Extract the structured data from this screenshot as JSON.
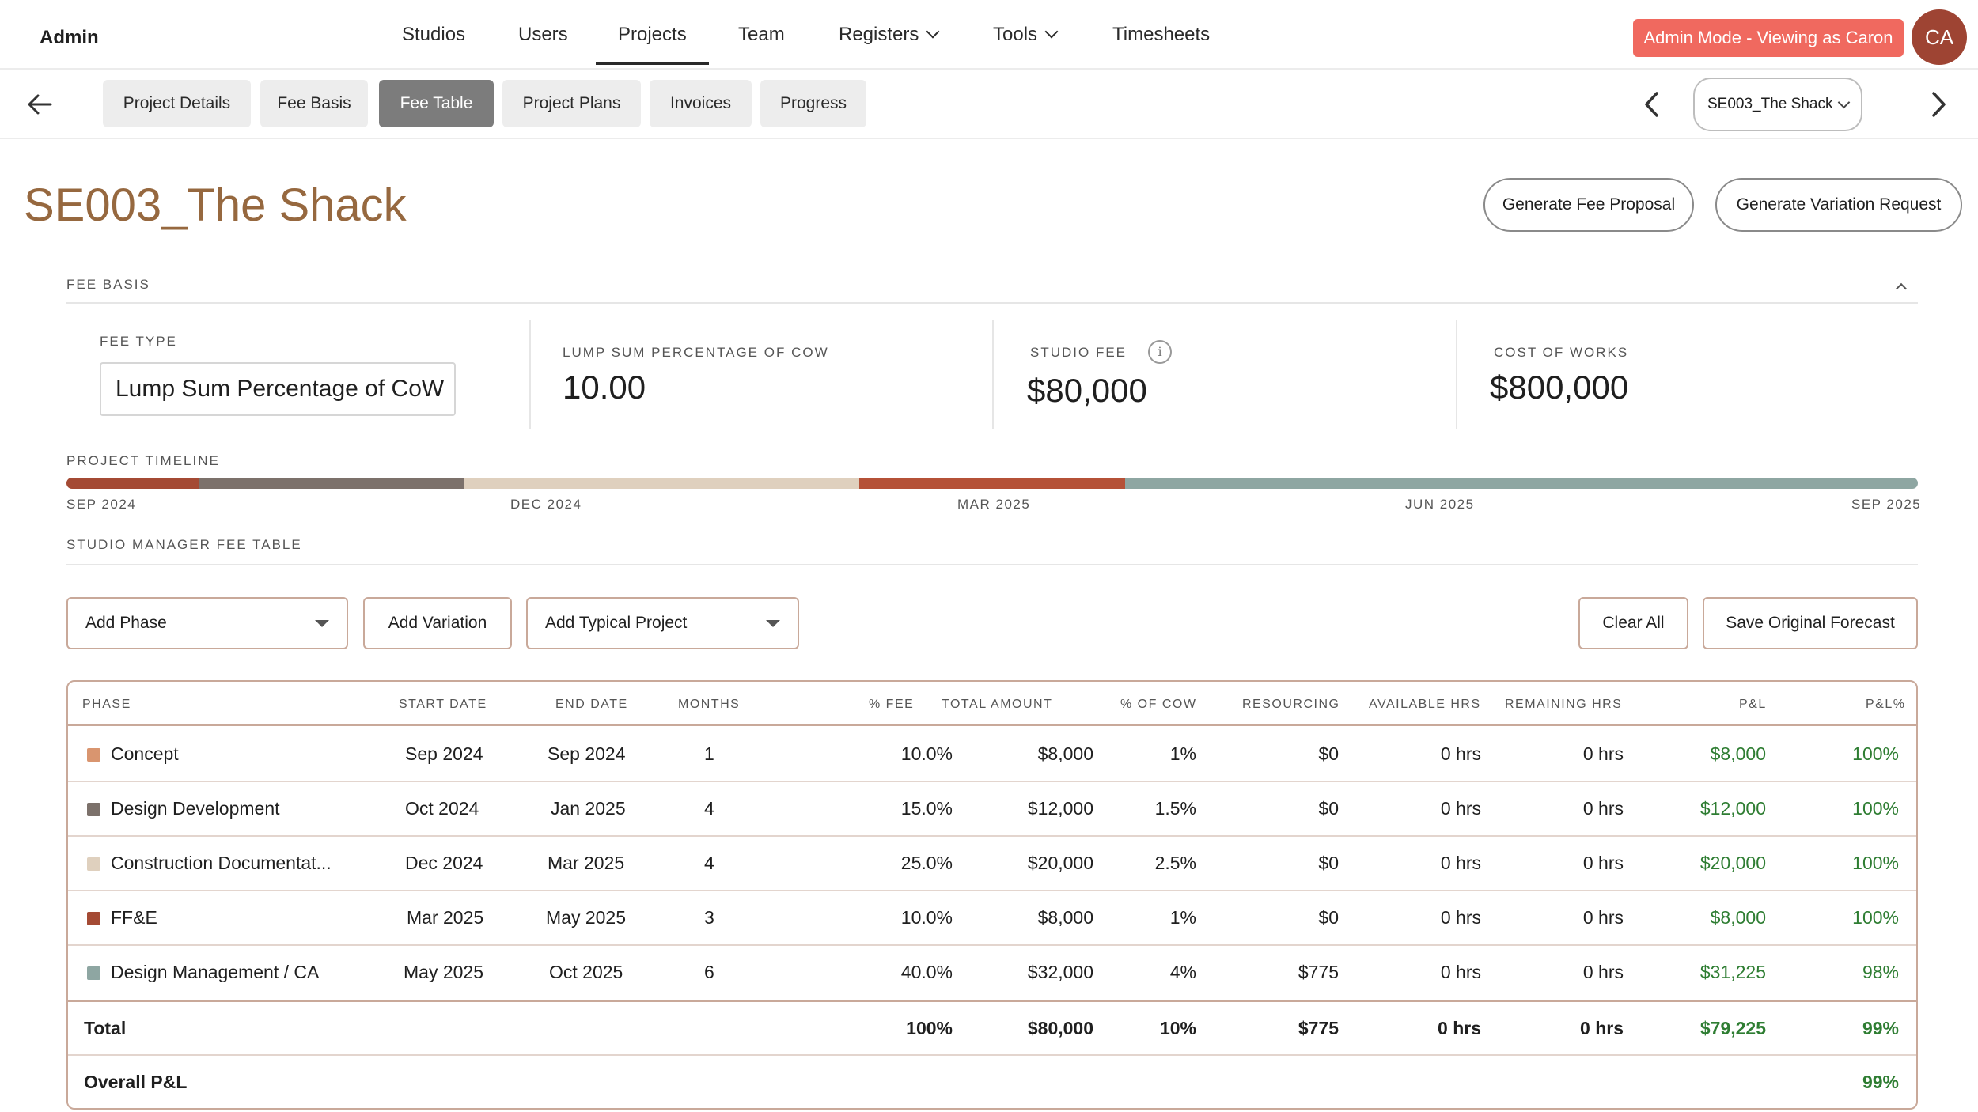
{
  "app": {
    "brand": "Admin",
    "admin_badge": "Admin Mode - Viewing as Caron",
    "avatar_initials": "CA"
  },
  "nav": {
    "items": [
      {
        "label": "Studios"
      },
      {
        "label": "Users"
      },
      {
        "label": "Projects",
        "active": true
      },
      {
        "label": "Team"
      },
      {
        "label": "Registers",
        "dropdown": true
      },
      {
        "label": "Tools",
        "dropdown": true
      },
      {
        "label": "Timesheets"
      }
    ]
  },
  "subnav": {
    "tabs": [
      {
        "label": "Project Details"
      },
      {
        "label": "Fee Basis"
      },
      {
        "label": "Fee Table",
        "active": true
      },
      {
        "label": "Project Plans"
      },
      {
        "label": "Invoices"
      },
      {
        "label": "Progress"
      }
    ],
    "project_select": "SE003_The Shack"
  },
  "page": {
    "title": "SE003_The Shack",
    "generate_fee_proposal": "Generate Fee Proposal",
    "generate_variation_request": "Generate Variation Request"
  },
  "fee_basis": {
    "section_label": "FEE BASIS",
    "fee_type_label": "FEE TYPE",
    "fee_type_value": "Lump Sum Percentage of CoW",
    "lump_sum_label": "LUMP SUM PERCENTAGE OF COW",
    "lump_sum_value": "10.00",
    "studio_fee_label": "STUDIO FEE",
    "studio_fee_value": "$80,000",
    "cost_of_works_label": "COST OF WORKS",
    "cost_of_works_value": "$800,000"
  },
  "timeline": {
    "section_label": "PROJECT TIMELINE",
    "labels": [
      "SEP 2024",
      "DEC 2024",
      "MAR 2025",
      "JUN 2025",
      "SEP 2025"
    ]
  },
  "fee_table": {
    "section_label": "STUDIO MANAGER FEE TABLE",
    "add_phase": "Add Phase",
    "add_variation": "Add Variation",
    "add_typical_project": "Add Typical Project",
    "clear_all": "Clear All",
    "save_original_forecast": "Save Original Forecast",
    "headers": {
      "phase": "PHASE",
      "start": "START DATE",
      "end": "END DATE",
      "months": "MONTHS",
      "fee_pct": "% FEE",
      "total": "TOTAL AMOUNT",
      "cow_pct": "% OF COW",
      "resourcing": "RESOURCING",
      "available": "AVAILABLE HRS",
      "remaining": "REMAINING HRS",
      "pl": "P&L",
      "pl_pct": "P&L%"
    },
    "rows": [
      {
        "phase": "Concept",
        "color": "#d9956f",
        "start": "Sep 2024",
        "end": "Sep 2024",
        "months": "1",
        "fee_pct": "10.0%",
        "total": "$8,000",
        "cow_pct": "1%",
        "resourcing": "$0",
        "available": "0 hrs",
        "remaining": "0 hrs",
        "pl": "$8,000",
        "pl_pct": "100%"
      },
      {
        "phase": "Design Development",
        "color": "#7c716b",
        "start": "Oct 2024",
        "end": "Jan 2025",
        "months": "4",
        "fee_pct": "15.0%",
        "total": "$12,000",
        "cow_pct": "1.5%",
        "resourcing": "$0",
        "available": "0 hrs",
        "remaining": "0 hrs",
        "pl": "$12,000",
        "pl_pct": "100%"
      },
      {
        "phase": "Construction Documentat...",
        "color": "#dfd0be",
        "start": "Dec 2024",
        "end": "Mar 2025",
        "months": "4",
        "fee_pct": "25.0%",
        "total": "$20,000",
        "cow_pct": "2.5%",
        "resourcing": "$0",
        "available": "0 hrs",
        "remaining": "0 hrs",
        "pl": "$20,000",
        "pl_pct": "100%"
      },
      {
        "phase": "FF&E",
        "color": "#a44a34",
        "start": "Mar 2025",
        "end": "May 2025",
        "months": "3",
        "fee_pct": "10.0%",
        "total": "$8,000",
        "cow_pct": "1%",
        "resourcing": "$0",
        "available": "0 hrs",
        "remaining": "0 hrs",
        "pl": "$8,000",
        "pl_pct": "100%"
      },
      {
        "phase": "Design Management / CA",
        "color": "#8ea6a2",
        "start": "May 2025",
        "end": "Oct 2025",
        "months": "6",
        "fee_pct": "40.0%",
        "total": "$32,000",
        "cow_pct": "4%",
        "resourcing": "$775",
        "available": "0 hrs",
        "remaining": "0 hrs",
        "pl": "$31,225",
        "pl_pct": "98%"
      }
    ],
    "total": {
      "label": "Total",
      "fee_pct": "100%",
      "total": "$80,000",
      "cow_pct": "10%",
      "resourcing": "$775",
      "available": "0 hrs",
      "remaining": "0 hrs",
      "pl": "$79,225",
      "pl_pct": "99%"
    },
    "overall": {
      "label": "Overall P&L",
      "pl_pct": "99%"
    }
  }
}
